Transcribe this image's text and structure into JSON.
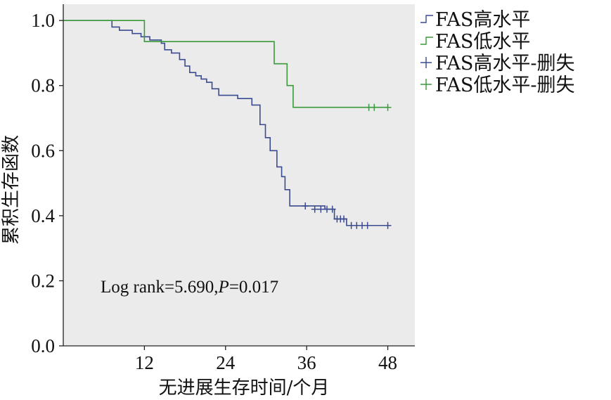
{
  "chart_data": {
    "type": "line",
    "subtype": "kaplan-meier",
    "xlabel": "无进展生存时间/个月",
    "ylabel": "累积生存函数",
    "xlim": [
      0,
      52
    ],
    "ylim": [
      0,
      1.05
    ],
    "xticks": [
      12,
      24,
      36,
      48
    ],
    "yticks": [
      "0.0",
      "0.2",
      "0.4",
      "0.6",
      "0.8",
      "1.0"
    ],
    "grid": false,
    "legend_position": "right",
    "annotation": {
      "prefix": "Log rank=5.690,",
      "p_label": "P",
      "suffix": "=0.017"
    },
    "colors": {
      "high": "#3b4b8f",
      "low": "#3a9a3a",
      "plot_bg": "#ebebeb"
    },
    "series": [
      {
        "name": "FAS高水平",
        "color": "#3b4b8f",
        "steps": [
          [
            0,
            1.0
          ],
          [
            7.2,
            0.98
          ],
          [
            8.3,
            0.97
          ],
          [
            10.2,
            0.96
          ],
          [
            11.5,
            0.95
          ],
          [
            12.8,
            0.94
          ],
          [
            14.5,
            0.93
          ],
          [
            15.0,
            0.91
          ],
          [
            16.0,
            0.9
          ],
          [
            17.2,
            0.88
          ],
          [
            18.0,
            0.86
          ],
          [
            18.7,
            0.84
          ],
          [
            19.6,
            0.83
          ],
          [
            20.4,
            0.82
          ],
          [
            21.2,
            0.81
          ],
          [
            22.0,
            0.79
          ],
          [
            23.0,
            0.77
          ],
          [
            25.8,
            0.76
          ],
          [
            27.9,
            0.74
          ],
          [
            29.1,
            0.68
          ],
          [
            29.9,
            0.64
          ],
          [
            30.6,
            0.6
          ],
          [
            31.6,
            0.55
          ],
          [
            32.3,
            0.52
          ],
          [
            32.8,
            0.48
          ],
          [
            33.5,
            0.43
          ],
          [
            38.7,
            0.42
          ],
          [
            40.1,
            0.39
          ],
          [
            41.9,
            0.37
          ],
          [
            48.0,
            0.37
          ]
        ],
        "censored": [
          [
            35.8,
            0.43
          ],
          [
            37.2,
            0.42
          ],
          [
            38.1,
            0.42
          ],
          [
            39.0,
            0.42
          ],
          [
            39.8,
            0.42
          ],
          [
            40.5,
            0.39
          ],
          [
            41.0,
            0.39
          ],
          [
            41.5,
            0.39
          ],
          [
            42.6,
            0.37
          ],
          [
            43.4,
            0.37
          ],
          [
            44.2,
            0.37
          ],
          [
            45.0,
            0.37
          ],
          [
            48.0,
            0.37
          ]
        ]
      },
      {
        "name": "FAS低水平",
        "color": "#3a9a3a",
        "steps": [
          [
            0,
            1.0
          ],
          [
            12.0,
            0.935
          ],
          [
            31.2,
            0.867
          ],
          [
            33.1,
            0.8
          ],
          [
            34.0,
            0.733
          ],
          [
            48.0,
            0.733
          ]
        ],
        "censored": [
          [
            45.2,
            0.733
          ],
          [
            46.0,
            0.733
          ],
          [
            48.0,
            0.733
          ]
        ]
      }
    ],
    "legend": [
      {
        "label": "FAS高水平",
        "marker": "step",
        "series": 0
      },
      {
        "label": "FAS低水平",
        "marker": "step",
        "series": 1
      },
      {
        "label": "FAS高水平-删失",
        "marker": "plus",
        "series": 0
      },
      {
        "label": "FAS低水平-删失",
        "marker": "plus",
        "series": 1
      }
    ]
  }
}
